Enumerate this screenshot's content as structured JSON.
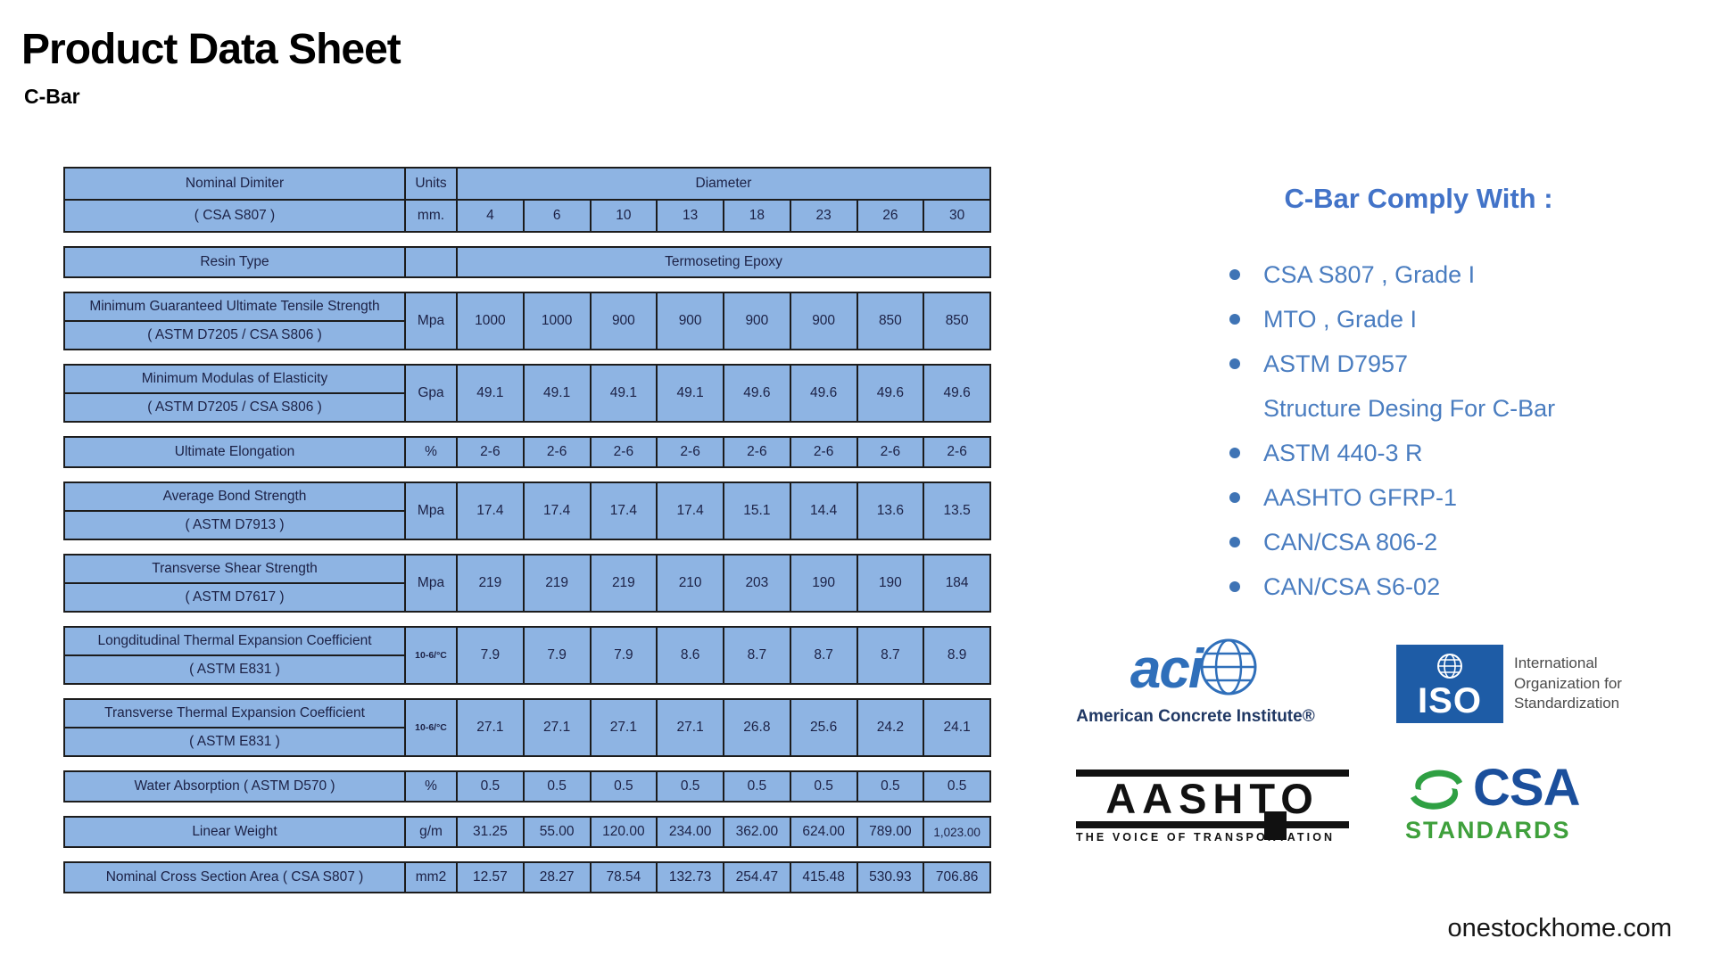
{
  "page": {
    "title": "Product Data Sheet",
    "subtitle": "C-Bar",
    "watermark": "onestockhome.com"
  },
  "table": {
    "header": {
      "col_line1": "Nominal Dimiter",
      "col_line2": "( CSA S807 )",
      "units_line1": "Units",
      "units_line2": "mm.",
      "span_label": "Diameter",
      "diameters": [
        "4",
        "6",
        "10",
        "13",
        "18",
        "23",
        "26",
        "30"
      ]
    },
    "resin": {
      "label": "Resin Type",
      "units": "",
      "value": "Termoseting Epoxy"
    },
    "rows": [
      {
        "label1": "Minimum Guaranteed Ultimate Tensile Strength",
        "label2": "( ASTM D7205 / CSA S806 )",
        "units": "Mpa",
        "values": [
          "1000",
          "1000",
          "900",
          "900",
          "900",
          "900",
          "850",
          "850"
        ]
      },
      {
        "label1": "Minimum Modulas of Elasticity",
        "label2": "( ASTM D7205 / CSA S806 )",
        "units": "Gpa",
        "values": [
          "49.1",
          "49.1",
          "49.1",
          "49.1",
          "49.6",
          "49.6",
          "49.6",
          "49.6"
        ]
      },
      {
        "label1": "Ultimate Elongation",
        "label2": "",
        "units": "%",
        "values": [
          "2-6",
          "2-6",
          "2-6",
          "2-6",
          "2-6",
          "2-6",
          "2-6",
          "2-6"
        ]
      },
      {
        "label1": "Average Bond Strength",
        "label2": "( ASTM D7913 )",
        "units": "Mpa",
        "values": [
          "17.4",
          "17.4",
          "17.4",
          "17.4",
          "15.1",
          "14.4",
          "13.6",
          "13.5"
        ]
      },
      {
        "label1": "Transverse Shear Strength",
        "label2": "( ASTM D7617 )",
        "units": "Mpa",
        "values": [
          "219",
          "219",
          "219",
          "210",
          "203",
          "190",
          "190",
          "184"
        ]
      },
      {
        "label1": "Longditudinal Thermal Expansion Coefficient",
        "label2": "( ASTM E831 )",
        "units": "10-6/°C",
        "values": [
          "7.9",
          "7.9",
          "7.9",
          "8.6",
          "8.7",
          "8.7",
          "8.7",
          "8.9"
        ]
      },
      {
        "label1": "Transverse Thermal Expansion Coefficient",
        "label2": "( ASTM E831 )",
        "units": "10-6/°C",
        "values": [
          "27.1",
          "27.1",
          "27.1",
          "27.1",
          "26.8",
          "25.6",
          "24.2",
          "24.1"
        ]
      },
      {
        "label1": "Water Absorption ( ASTM D570 )",
        "label2": "",
        "units": "%",
        "values": [
          "0.5",
          "0.5",
          "0.5",
          "0.5",
          "0.5",
          "0.5",
          "0.5",
          "0.5"
        ]
      },
      {
        "label1": "Linear Weight",
        "label2": "",
        "units": "g/m",
        "values": [
          "31.25",
          "55.00",
          "120.00",
          "234.00",
          "362.00",
          "624.00",
          "789.00",
          "1,023.00"
        ]
      },
      {
        "label1": "Nominal Cross Section Area ( CSA S807 )",
        "label2": "",
        "units": "mm2",
        "values": [
          "12.57",
          "28.27",
          "78.54",
          "132.73",
          "254.47",
          "415.48",
          "530.93",
          "706.86"
        ]
      }
    ]
  },
  "comply": {
    "title": "C-Bar Comply With :",
    "items": [
      {
        "text": "CSA S807 , Grade I",
        "bullet": true
      },
      {
        "text": "MTO , Grade I",
        "bullet": true
      },
      {
        "text": "ASTM D7957",
        "bullet": true
      },
      {
        "text": "Structure Desing For C-Bar",
        "bullet": false
      },
      {
        "text": "ASTM 440-3 R",
        "bullet": true
      },
      {
        "text": "AASHTO GFRP-1",
        "bullet": true
      },
      {
        "text": "CAN/CSA 806-2",
        "bullet": true
      },
      {
        "text": "CAN/CSA S6-02",
        "bullet": true
      }
    ]
  },
  "logos": {
    "aci": {
      "acronym": "aci",
      "caption": "American Concrete Institute®"
    },
    "iso": {
      "acronym": "ISO",
      "caption_lines": [
        "International",
        "Organization for",
        "Standardization"
      ]
    },
    "aashto": {
      "acronym": "AASHTO",
      "caption": "THE VOICE OF TRANSPORTATION"
    },
    "csa": {
      "acronym": "CSA",
      "caption": "STANDARDS"
    }
  },
  "colors": {
    "table_cell_blue": "#8EB4E3",
    "table_border": "#1c1c1c",
    "comply_blue": "#4273C8",
    "aci_blue": "#2f6fba",
    "iso_blue": "#1e5ca6",
    "csa_blue": "#1b4f9c",
    "csa_green": "#3fa03c"
  }
}
